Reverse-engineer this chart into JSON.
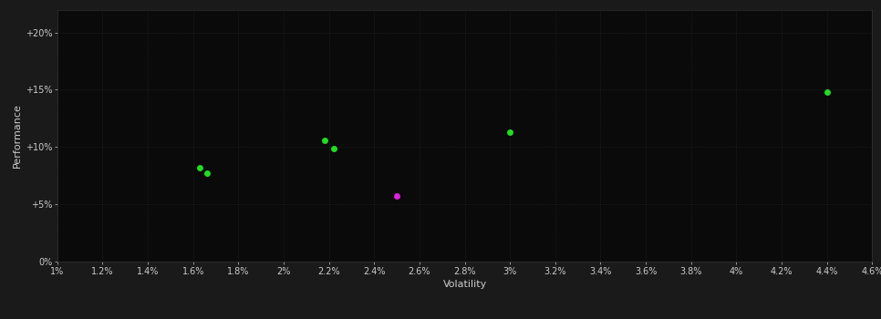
{
  "background_color": "#1a1a1a",
  "plot_bg_color": "#0a0a0a",
  "grid_color": "#2a2a2a",
  "text_color": "#cccccc",
  "xlabel": "Volatility",
  "ylabel": "Performance",
  "xlim": [
    0.01,
    0.046
  ],
  "ylim": [
    0.0,
    0.22
  ],
  "xticks": [
    0.01,
    0.012,
    0.014,
    0.016,
    0.018,
    0.02,
    0.022,
    0.024,
    0.026,
    0.028,
    0.03,
    0.032,
    0.034,
    0.036,
    0.038,
    0.04,
    0.042,
    0.044,
    0.046
  ],
  "xtick_labels": [
    "1%",
    "1.2%",
    "1.4%",
    "1.6%",
    "1.8%",
    "2%",
    "2.2%",
    "2.4%",
    "2.6%",
    "2.8%",
    "3%",
    "3.2%",
    "3.4%",
    "3.6%",
    "3.8%",
    "4%",
    "4.2%",
    "4.4%",
    "4.6%"
  ],
  "yticks": [
    0.0,
    0.05,
    0.1,
    0.15,
    0.2
  ],
  "ytick_labels": [
    "0%",
    "+5%",
    "+10%",
    "+15%",
    "+20%"
  ],
  "green_points": [
    [
      0.0163,
      0.082
    ],
    [
      0.0166,
      0.077
    ],
    [
      0.0218,
      0.106
    ],
    [
      0.0222,
      0.099
    ],
    [
      0.03,
      0.113
    ],
    [
      0.044,
      0.148
    ]
  ],
  "magenta_points": [
    [
      0.025,
      0.057
    ]
  ],
  "green_color": "#22dd22",
  "magenta_color": "#dd22dd",
  "marker_size": 5
}
